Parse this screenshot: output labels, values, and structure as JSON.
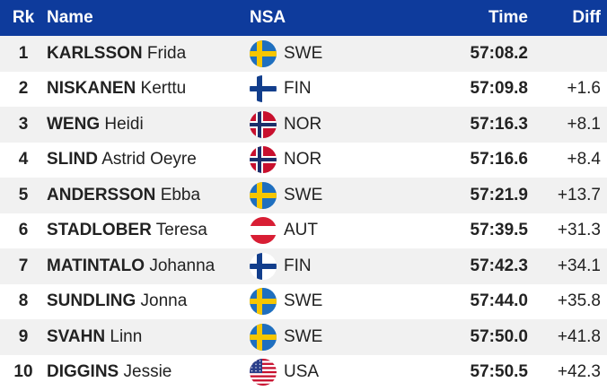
{
  "header": {
    "rank": "Rk",
    "name": "Name",
    "nsa": "NSA",
    "time": "Time",
    "diff": "Diff"
  },
  "rows": [
    {
      "rank": "1",
      "last": "KARLSSON",
      "first": "Frida",
      "nsa": "SWE",
      "flag": "sweden-flag-icon",
      "time": "57:08.2",
      "diff": ""
    },
    {
      "rank": "2",
      "last": "NISKANEN",
      "first": "Kerttu",
      "nsa": "FIN",
      "flag": "finland-flag-icon",
      "time": "57:09.8",
      "diff": "+1.6"
    },
    {
      "rank": "3",
      "last": "WENG",
      "first": "Heidi",
      "nsa": "NOR",
      "flag": "norway-flag-icon",
      "time": "57:16.3",
      "diff": "+8.1"
    },
    {
      "rank": "4",
      "last": "SLIND",
      "first": "Astrid Oeyre",
      "nsa": "NOR",
      "flag": "norway-flag-icon",
      "time": "57:16.6",
      "diff": "+8.4"
    },
    {
      "rank": "5",
      "last": "ANDERSSON",
      "first": "Ebba",
      "nsa": "SWE",
      "flag": "sweden-flag-icon",
      "time": "57:21.9",
      "diff": "+13.7"
    },
    {
      "rank": "6",
      "last": "STADLOBER",
      "first": "Teresa",
      "nsa": "AUT",
      "flag": "austria-flag-icon",
      "time": "57:39.5",
      "diff": "+31.3"
    },
    {
      "rank": "7",
      "last": "MATINTALO",
      "first": "Johanna",
      "nsa": "FIN",
      "flag": "finland-flag-icon",
      "time": "57:42.3",
      "diff": "+34.1"
    },
    {
      "rank": "8",
      "last": "SUNDLING",
      "first": "Jonna",
      "nsa": "SWE",
      "flag": "sweden-flag-icon",
      "time": "57:44.0",
      "diff": "+35.8"
    },
    {
      "rank": "9",
      "last": "SVAHN",
      "first": "Linn",
      "nsa": "SWE",
      "flag": "sweden-flag-icon",
      "time": "57:50.0",
      "diff": "+41.8"
    },
    {
      "rank": "10",
      "last": "DIGGINS",
      "first": "Jessie",
      "nsa": "USA",
      "flag": "usa-flag-icon",
      "time": "57:50.5",
      "diff": "+42.3"
    }
  ],
  "colors": {
    "header_bg": "#0e3b9c",
    "row_alt": "#f1f1f1"
  }
}
